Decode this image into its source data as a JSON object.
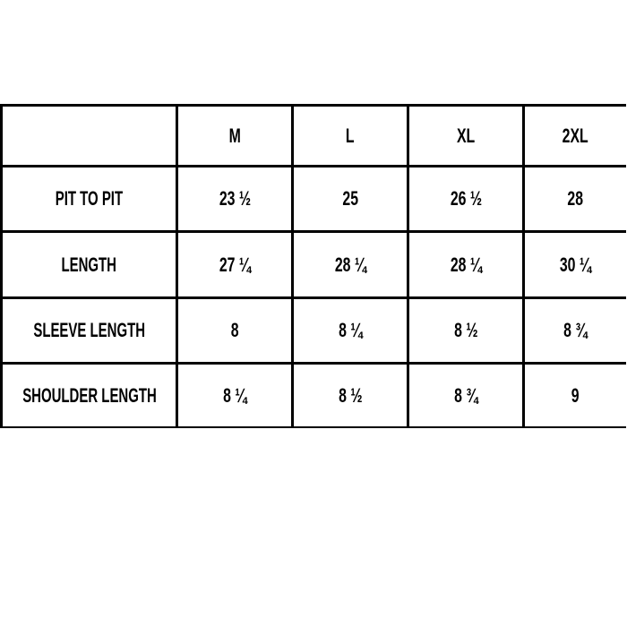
{
  "table": {
    "headers": [
      "",
      "M",
      "L",
      "XL",
      "2XL"
    ],
    "rows": [
      {
        "label": "PIT TO PIT",
        "values": [
          "23 ½",
          "25",
          "26 ½",
          "28"
        ]
      },
      {
        "label": "LENGTH",
        "values": [
          "27 ¼",
          "28 ¼",
          "28 ¼",
          "30 ¼"
        ]
      },
      {
        "label": "SLEEVE LENGTH",
        "values": [
          "8",
          "8 ¼",
          "8 ½",
          "8 ¾"
        ]
      },
      {
        "label": "SHOULDER LENGTH",
        "values": [
          "8 ¼",
          "8 ½",
          "8  ¾",
          "9"
        ]
      }
    ]
  }
}
